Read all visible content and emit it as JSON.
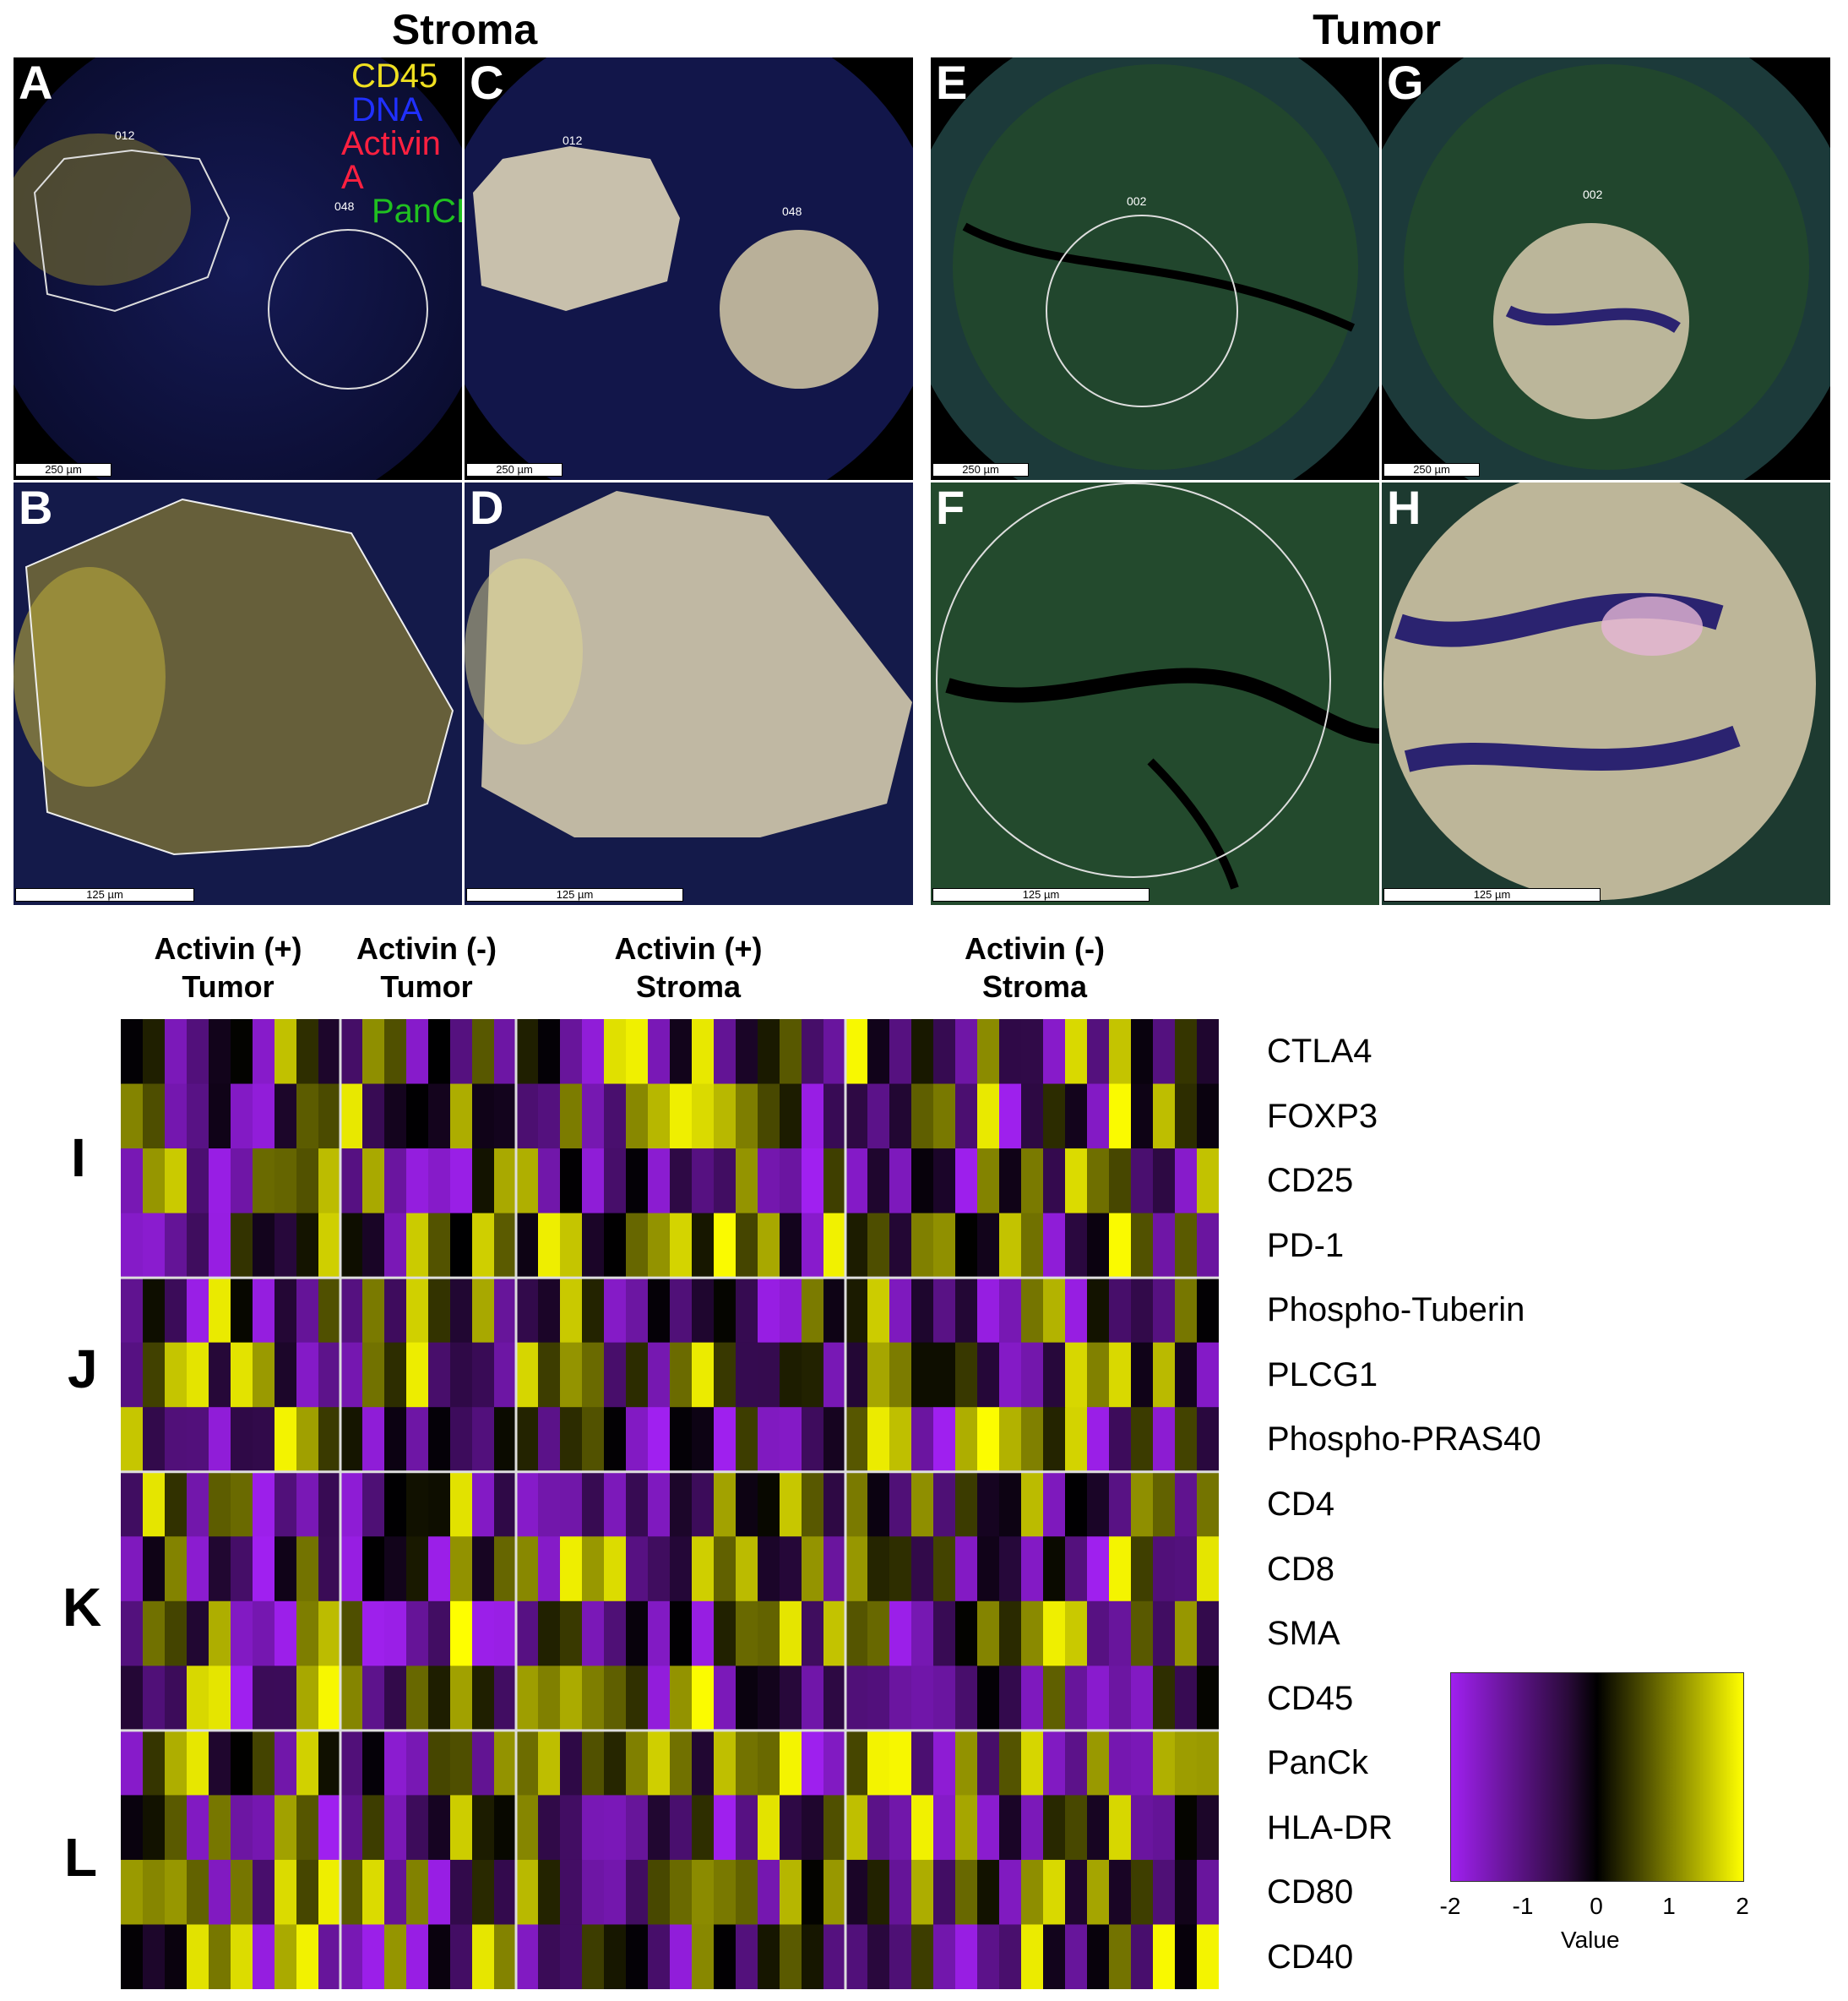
{
  "figure": {
    "titles": {
      "stroma": "Stroma",
      "tumor": "Tumor"
    },
    "panels": [
      {
        "letter": "A",
        "scale": "250 µm",
        "roi": [
          "012",
          "048"
        ]
      },
      {
        "letter": "C",
        "scale": "250 µm",
        "roi": [
          "012",
          "048"
        ]
      },
      {
        "letter": "E",
        "scale": "250 µm",
        "roi": [
          "002"
        ]
      },
      {
        "letter": "G",
        "scale": "250 µm",
        "roi": [
          "002"
        ]
      },
      {
        "letter": "B",
        "scale": "125 µm"
      },
      {
        "letter": "D",
        "scale": "125 µm"
      },
      {
        "letter": "F",
        "scale": "125 µm"
      },
      {
        "letter": "H",
        "scale": "125 µm"
      }
    ],
    "channel_legend": [
      {
        "label": "CD45",
        "color": "#f0e020"
      },
      {
        "label": "DNA",
        "color": "#2030ff"
      },
      {
        "label": "Activin A",
        "color": "#ff2040"
      },
      {
        "label": "PanCK",
        "color": "#20c020"
      }
    ]
  },
  "heatmap": {
    "groups": [
      {
        "line1": "Activin (+)",
        "line2": "Tumor",
        "columns": 10
      },
      {
        "line1": "Activin (-)",
        "line2": "Tumor",
        "columns": 8
      },
      {
        "line1": "Activin (+)",
        "line2": "Stroma",
        "columns": 15
      },
      {
        "line1": "Activin (-)",
        "line2": "Stroma",
        "columns": 17
      }
    ],
    "row_labels": [
      "CTLA4",
      "FOXP3",
      "CD25",
      "PD-1",
      "Phospho-Tuberin",
      "PLCG1",
      "Phospho-PRAS40",
      "CD4",
      "CD8",
      "SMA",
      "CD45",
      "PanCk",
      "HLA-DR",
      "CD80",
      "CD40"
    ],
    "blocks": [
      {
        "letter": "I",
        "rows": 4
      },
      {
        "letter": "J",
        "rows": 3
      },
      {
        "letter": "K",
        "rows": 4
      },
      {
        "letter": "L",
        "rows": 4
      }
    ],
    "colorbar": {
      "title": "Value",
      "ticks": [
        "-2",
        "-1",
        "0",
        "1",
        "2"
      ],
      "min": -2,
      "max": 2,
      "colors": {
        "low": "#a020f0",
        "mid": "#000000",
        "high": "#ffff00"
      }
    }
  }
}
